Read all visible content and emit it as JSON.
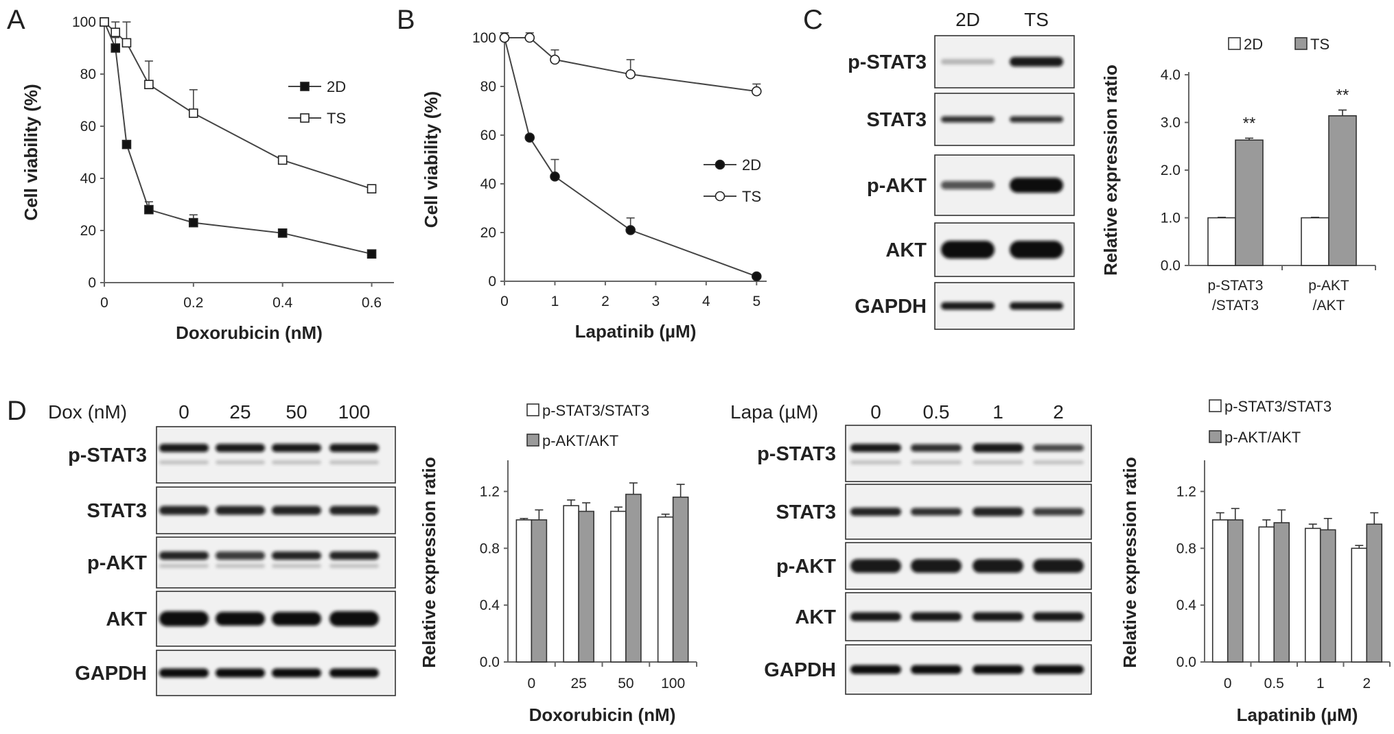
{
  "figure": {
    "panel_labels": [
      "A",
      "B",
      "C",
      "D"
    ]
  },
  "chart_data": [
    {
      "panel": "A",
      "type": "line",
      "xlabel": "Doxorubicin (nM)",
      "ylabel": "Cell viability (%)",
      "xlim": [
        0,
        0.65
      ],
      "ylim": [
        0,
        100
      ],
      "xticks": [
        0,
        0.2,
        0.4,
        0.6
      ],
      "xtick_labels": [
        "0",
        "0.2",
        "0.4",
        "0.6"
      ],
      "yticks": [
        0,
        20,
        40,
        60,
        80,
        100
      ],
      "legend_position": "right",
      "series": [
        {
          "name": "2D",
          "marker": "square-filled",
          "x": [
            0,
            0.025,
            0.05,
            0.1,
            0.2,
            0.4,
            0.6
          ],
          "y": [
            100,
            90,
            53,
            28,
            23,
            19,
            11
          ],
          "err": [
            0,
            4,
            1,
            3,
            3,
            1,
            1
          ]
        },
        {
          "name": "TS",
          "marker": "square-open",
          "x": [
            0,
            0.025,
            0.05,
            0.1,
            0.2,
            0.4,
            0.6
          ],
          "y": [
            100,
            96,
            92,
            76,
            65,
            47,
            36
          ],
          "err": [
            0,
            4,
            8,
            9,
            9,
            1,
            1
          ]
        }
      ]
    },
    {
      "panel": "B",
      "type": "line",
      "xlabel": "Lapatinib (µM)",
      "ylabel": "Cell viability (%)",
      "xlim": [
        0,
        5.2
      ],
      "ylim": [
        0,
        100
      ],
      "xticks": [
        0,
        1,
        2,
        3,
        4,
        5
      ],
      "xtick_labels": [
        "0",
        "1",
        "2",
        "3",
        "4",
        "5"
      ],
      "yticks": [
        0,
        20,
        40,
        60,
        80,
        100
      ],
      "legend_position": "right",
      "series": [
        {
          "name": "2D",
          "marker": "circle-filled",
          "x": [
            0,
            0.5,
            1,
            2.5,
            5
          ],
          "y": [
            100,
            59,
            43,
            21,
            2
          ],
          "err": [
            2,
            1,
            7,
            5,
            1
          ]
        },
        {
          "name": "TS",
          "marker": "circle-open",
          "x": [
            0,
            0.5,
            1,
            2.5,
            5
          ],
          "y": [
            100,
            100,
            91,
            85,
            78
          ],
          "err": [
            2,
            2,
            4,
            6,
            3
          ]
        }
      ]
    },
    {
      "panel": "C",
      "type": "bar",
      "ylabel": "Relative expression ratio",
      "ylim": [
        0,
        4.0
      ],
      "yticks": [
        0,
        1,
        2,
        3,
        4
      ],
      "ytick_labels": [
        "0.0",
        "1.0",
        "2.0",
        "3.0",
        "4.0"
      ],
      "categories": [
        [
          "p-STAT3",
          "/STAT3"
        ],
        [
          "p-AKT",
          "/AKT"
        ]
      ],
      "legend_position": "top",
      "series": [
        {
          "name": "2D",
          "color": "#ffffff",
          "values": [
            1.0,
            1.0
          ],
          "err": [
            0.01,
            0.01
          ]
        },
        {
          "name": "TS",
          "color": "#9a9a9a",
          "values": [
            2.63,
            3.14
          ],
          "err": [
            0.04,
            0.12
          ]
        }
      ],
      "annotations": [
        "**",
        "**"
      ]
    },
    {
      "panel": "D-left",
      "type": "bar",
      "xlabel": "Doxorubicin (nM)",
      "ylabel": "Relative expression ratio",
      "ylim": [
        0,
        1.4
      ],
      "yticks": [
        0,
        0.4,
        0.8,
        1.2
      ],
      "ytick_labels": [
        "0.0",
        "0.4",
        "0.8",
        "1.2"
      ],
      "categories": [
        "0",
        "25",
        "50",
        "100"
      ],
      "legend_position": "top",
      "series": [
        {
          "name": "p-STAT3/STAT3",
          "color": "#ffffff",
          "values": [
            1.0,
            1.1,
            1.06,
            1.02
          ],
          "err": [
            0.01,
            0.04,
            0.03,
            0.02
          ]
        },
        {
          "name": "p-AKT/AKT",
          "color": "#9a9a9a",
          "values": [
            1.0,
            1.06,
            1.18,
            1.16
          ],
          "err": [
            0.07,
            0.06,
            0.08,
            0.09
          ]
        }
      ]
    },
    {
      "panel": "D-right",
      "type": "bar",
      "xlabel": "Lapatinib (µM)",
      "ylabel": "Relative expression ratio",
      "ylim": [
        0,
        1.4
      ],
      "yticks": [
        0,
        0.4,
        0.8,
        1.2
      ],
      "ytick_labels": [
        "0.0",
        "0.4",
        "0.8",
        "1.2"
      ],
      "categories": [
        "0",
        "0.5",
        "1",
        "2"
      ],
      "legend_position": "top",
      "series": [
        {
          "name": "p-STAT3/STAT3",
          "color": "#ffffff",
          "values": [
            1.0,
            0.95,
            0.94,
            0.8
          ],
          "err": [
            0.05,
            0.05,
            0.03,
            0.02
          ]
        },
        {
          "name": "p-AKT/AKT",
          "color": "#9a9a9a",
          "values": [
            1.0,
            0.98,
            0.93,
            0.97
          ],
          "err": [
            0.08,
            0.09,
            0.08,
            0.08
          ]
        }
      ]
    }
  ],
  "blots": {
    "C": {
      "lanes": [
        "2D",
        "TS"
      ],
      "rows": [
        "p-STAT3",
        "STAT3",
        "p-AKT",
        "AKT",
        "GAPDH"
      ]
    },
    "D_dox": {
      "treatment": "Dox (nM)",
      "lanes": [
        "0",
        "25",
        "50",
        "100"
      ],
      "rows": [
        "p-STAT3",
        "STAT3",
        "p-AKT",
        "AKT",
        "GAPDH"
      ]
    },
    "D_lapa": {
      "treatment": "Lapa (µM)",
      "lanes": [
        "0",
        "0.5",
        "1",
        "2"
      ],
      "rows": [
        "p-STAT3",
        "STAT3",
        "p-AKT",
        "AKT",
        "GAPDH"
      ]
    }
  }
}
